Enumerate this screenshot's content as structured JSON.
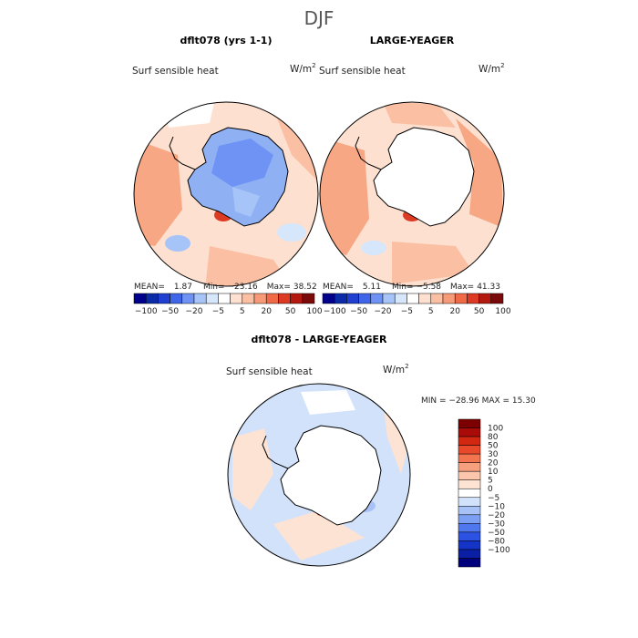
{
  "chart_data": {
    "type": "heatmap",
    "super_title": "DJF",
    "field_label": "Surf sensible heat",
    "units_label": "W/m",
    "units_exp": "2",
    "panels": [
      {
        "title": "dflt078 (yrs 1-1)",
        "stats": {
          "mean_label": "MEAN=",
          "mean": "1.87",
          "min_label": "Min=",
          "min": "−23.16",
          "max_label": "Max=",
          "max": "38.52"
        }
      },
      {
        "title": "LARGE-YEAGER",
        "stats": {
          "mean_label": "MEAN=",
          "mean": "5.11",
          "min_label": "Min=",
          "min": "−5.58",
          "max_label": "Max=",
          "max": "41.33"
        }
      },
      {
        "title": "dflt078 - LARGE-YEAGER",
        "stats_text": "MIN = −28.96 MAX =  15.30"
      }
    ],
    "colorbar_top": {
      "colors": [
        "#00008a",
        "#0a2aa8",
        "#1e3fd0",
        "#3f66e8",
        "#6f93f4",
        "#a6c4f8",
        "#d6e6fb",
        "#ffffff",
        "#fde0cf",
        "#fbc0a4",
        "#f79a78",
        "#f06a48",
        "#dc3a22",
        "#b3190f",
        "#7a0a0a"
      ],
      "tick_labels": [
        "−100",
        "−50",
        "−20",
        "−5",
        "5",
        "20",
        "50",
        "100"
      ]
    },
    "colorbar_diff": {
      "colors": [
        "#00007d",
        "#0a1fa3",
        "#1434c8",
        "#2b52e3",
        "#4f77ee",
        "#7b9ff3",
        "#a8c2f7",
        "#d2e2fb",
        "#ffffff",
        "#fde3d3",
        "#fbc6ab",
        "#f7a07e",
        "#f27550",
        "#e8492a",
        "#d22710",
        "#a90c08",
        "#7d0000"
      ],
      "tick_labels": [
        "100",
        "80",
        "50",
        "30",
        "20",
        "10",
        "5",
        "0",
        "−5",
        "−10",
        "−20",
        "−30",
        "−50",
        "−80",
        "−100"
      ]
    }
  }
}
